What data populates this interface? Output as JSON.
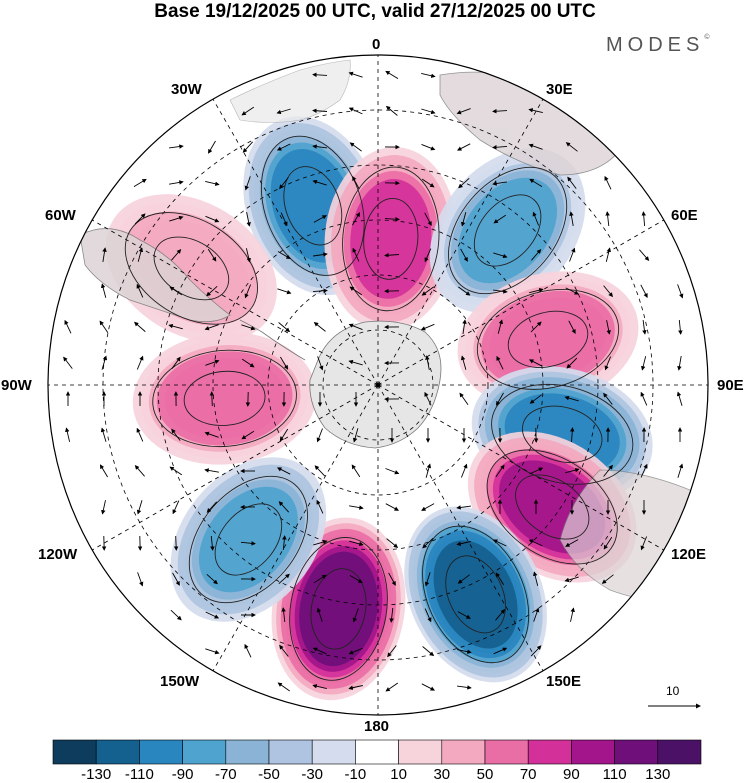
{
  "title": "Base 19/12/2025 00 UTC, valid 27/12/2025 00 UTC",
  "brand": "MODES",
  "brand_mark": "©",
  "longitude_labels": {
    "lon_0": "0",
    "lon_30e": "30E",
    "lon_60e": "60E",
    "lon_90e": "90E",
    "lon_120e": "120E",
    "lon_150e": "150E",
    "lon_180": "180",
    "lon_150w": "150W",
    "lon_120w": "120W",
    "lon_90w": "90W",
    "lon_60w": "60W",
    "lon_30w": "30W"
  },
  "vector_reference": {
    "label": "10"
  },
  "colorbar": {
    "labels": [
      "-130",
      "-110",
      "-90",
      "-70",
      "-50",
      "-30",
      "-10",
      "10",
      "30",
      "50",
      "70",
      "90",
      "110",
      "130"
    ],
    "colors": [
      "#0d3c5c",
      "#14608f",
      "#2a86bf",
      "#4fa3cf",
      "#8ab3d6",
      "#aec4e0",
      "#d4dcee",
      "#ffffff",
      "#f7d3dc",
      "#f3a9c0",
      "#ea6ea6",
      "#d4309a",
      "#a3158b",
      "#6e0f7a",
      "#4b1166"
    ]
  },
  "chart_data": {
    "type": "polar-stereographic anomaly map with wind vectors",
    "projection_center": "south pole",
    "units_label": "",
    "contour_levels": [
      -130,
      -110,
      -90,
      -70,
      -50,
      -30,
      -10,
      10,
      30,
      50,
      70,
      90,
      110,
      130
    ],
    "anomaly_centers": [
      {
        "name": "low-near-30W",
        "lon": -20,
        "colat": 52,
        "value": -95
      },
      {
        "name": "high-near-0",
        "lon": 5,
        "colat": 40,
        "value": 80
      },
      {
        "name": "low-near-40E",
        "lon": 40,
        "colat": 55,
        "value": -70
      },
      {
        "name": "high-near-75E",
        "lon": 75,
        "colat": 48,
        "value": 65
      },
      {
        "name": "low-near-105E",
        "lon": 105,
        "colat": 52,
        "value": -100
      },
      {
        "name": "high-near-125E",
        "lon": 125,
        "colat": 58,
        "value": 95
      },
      {
        "name": "low-near-155E",
        "lon": 155,
        "colat": 63,
        "value": -125
      },
      {
        "name": "high-near-170W",
        "lon": -170,
        "colat": 62,
        "value": 120
      },
      {
        "name": "low-near-140W",
        "lon": -140,
        "colat": 55,
        "value": -80
      },
      {
        "name": "high-near-95W",
        "lon": -95,
        "colat": 42,
        "value": 70
      },
      {
        "name": "high-near-55W",
        "lon": -58,
        "colat": 60,
        "value": 50
      }
    ]
  }
}
